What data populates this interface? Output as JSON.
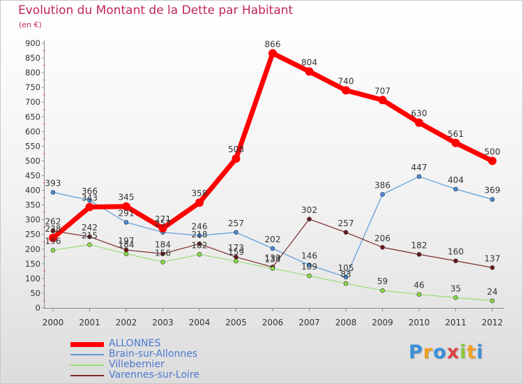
{
  "title": "Evolution du Montant de la Dette par Habitant",
  "subtitle": "(en €)",
  "brand": "Proxiti",
  "brand_colors": [
    "#3a8fd8",
    "#f0a020",
    "#3a8fd8",
    "#e04040",
    "#8cc63f",
    "#f0a020",
    "#3a8fd8"
  ],
  "chart_data": {
    "type": "line",
    "title": "Evolution du Montant de la Dette par Habitant",
    "subtitle": "(en €)",
    "xlabel": "",
    "ylabel": "",
    "ylim": [
      0,
      900
    ],
    "yticks": [
      0,
      50,
      100,
      150,
      200,
      250,
      300,
      350,
      400,
      450,
      500,
      550,
      600,
      650,
      700,
      750,
      800,
      850,
      900
    ],
    "categories": [
      "2000",
      "2001",
      "2002",
      "2003",
      "2004",
      "2005",
      "2006",
      "2007",
      "2008",
      "2009",
      "2010",
      "2011",
      "2012"
    ],
    "grid": false,
    "legend_position": "bottom-left",
    "series": [
      {
        "name": "ALLONNES",
        "color": "#ff0000",
        "point_color": "#ff0000",
        "width": 7,
        "values": [
          238,
          343,
          345,
          271,
          358,
          508,
          866,
          804,
          740,
          707,
          630,
          561,
          500
        ]
      },
      {
        "name": "Brain-sur-Allonnes",
        "color": "#5b9bd5",
        "point_color": "#4a8ad8",
        "width": 1.2,
        "values": [
          393,
          366,
          291,
          257,
          246,
          257,
          202,
          146,
          105,
          386,
          447,
          404,
          369
        ]
      },
      {
        "name": "Villebernier",
        "color": "#99dd77",
        "point_color": "#88dd44",
        "width": 1.2,
        "values": [
          196,
          215,
          184,
          156,
          182,
          159,
          134,
          109,
          83,
          59,
          46,
          35,
          24
        ]
      },
      {
        "name": "Varennes-sur-Loire",
        "color": "#7a2a2a",
        "point_color": "#6a1818",
        "width": 1.2,
        "values": [
          262,
          242,
          197,
          184,
          218,
          173,
          139,
          302,
          257,
          206,
          182,
          160,
          137
        ]
      }
    ],
    "labels": [
      {
        "series": 1,
        "i": 0,
        "text": "393"
      },
      {
        "series": 1,
        "i": 1,
        "text": "366"
      },
      {
        "series": 1,
        "i": 2,
        "text": "291"
      },
      {
        "series": 1,
        "i": 3,
        "text": "257"
      },
      {
        "series": 1,
        "i": 4,
        "text": "246"
      },
      {
        "series": 1,
        "i": 5,
        "text": "257"
      },
      {
        "series": 1,
        "i": 6,
        "text": "202"
      },
      {
        "series": 1,
        "i": 7,
        "text": "146"
      },
      {
        "series": 1,
        "i": 8,
        "text": "105"
      },
      {
        "series": 1,
        "i": 9,
        "text": "386"
      },
      {
        "series": 1,
        "i": 10,
        "text": "447"
      },
      {
        "series": 1,
        "i": 11,
        "text": "404"
      },
      {
        "series": 1,
        "i": 12,
        "text": "369"
      },
      {
        "series": 3,
        "i": 0,
        "text": "262"
      },
      {
        "series": 3,
        "i": 1,
        "text": "242"
      },
      {
        "series": 3,
        "i": 2,
        "text": "197"
      },
      {
        "series": 3,
        "i": 3,
        "text": "184"
      },
      {
        "series": 3,
        "i": 4,
        "text": "218"
      },
      {
        "series": 3,
        "i": 5,
        "text": "173"
      },
      {
        "series": 3,
        "i": 6,
        "text": "139"
      },
      {
        "series": 3,
        "i": 7,
        "text": "302"
      },
      {
        "series": 3,
        "i": 8,
        "text": "257"
      },
      {
        "series": 3,
        "i": 9,
        "text": "206"
      },
      {
        "series": 3,
        "i": 10,
        "text": "182"
      },
      {
        "series": 3,
        "i": 11,
        "text": "160"
      },
      {
        "series": 3,
        "i": 12,
        "text": "137"
      },
      {
        "series": 2,
        "i": 0,
        "text": "196"
      },
      {
        "series": 2,
        "i": 1,
        "text": "215"
      },
      {
        "series": 2,
        "i": 2,
        "text": "184"
      },
      {
        "series": 2,
        "i": 3,
        "text": "156"
      },
      {
        "series": 2,
        "i": 4,
        "text": "182"
      },
      {
        "series": 2,
        "i": 5,
        "text": "159"
      },
      {
        "series": 2,
        "i": 6,
        "text": "134"
      },
      {
        "series": 2,
        "i": 7,
        "text": "109"
      },
      {
        "series": 2,
        "i": 8,
        "text": "83"
      },
      {
        "series": 2,
        "i": 9,
        "text": "59"
      },
      {
        "series": 2,
        "i": 10,
        "text": "46"
      },
      {
        "series": 2,
        "i": 11,
        "text": "35"
      },
      {
        "series": 2,
        "i": 12,
        "text": "24"
      },
      {
        "series": 0,
        "i": 0,
        "text": "238"
      },
      {
        "series": 0,
        "i": 1,
        "text": "343"
      },
      {
        "series": 0,
        "i": 2,
        "text": "345"
      },
      {
        "series": 0,
        "i": 3,
        "text": "271"
      },
      {
        "series": 0,
        "i": 4,
        "text": "358"
      },
      {
        "series": 0,
        "i": 5,
        "text": "508"
      },
      {
        "series": 0,
        "i": 6,
        "text": "866"
      },
      {
        "series": 0,
        "i": 7,
        "text": "804"
      },
      {
        "series": 0,
        "i": 8,
        "text": "740"
      },
      {
        "series": 0,
        "i": 9,
        "text": "707"
      },
      {
        "series": 0,
        "i": 10,
        "text": "630"
      },
      {
        "series": 0,
        "i": 11,
        "text": "561"
      },
      {
        "series": 0,
        "i": 12,
        "text": "500"
      }
    ]
  }
}
